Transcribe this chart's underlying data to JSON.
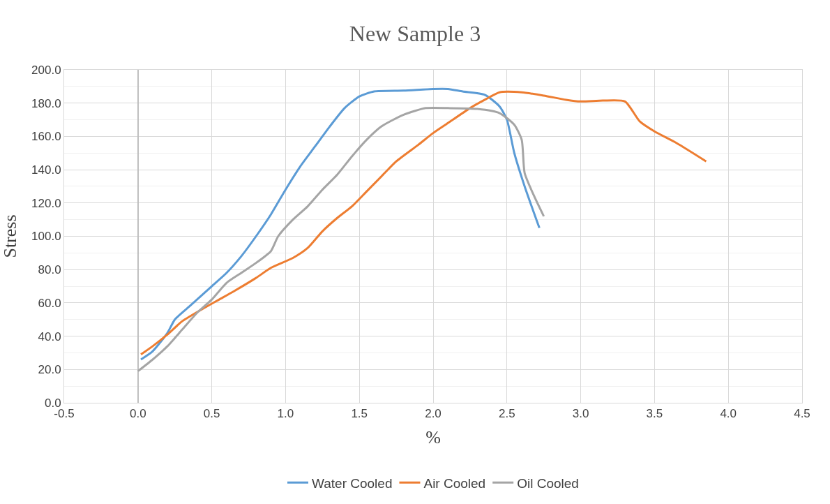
{
  "chart_data": {
    "type": "line",
    "title": "New Sample 3",
    "xlabel": "%",
    "ylabel": "Stress",
    "xlim": [
      -0.5,
      4.5
    ],
    "xticks": [
      {
        "value": -0.5,
        "label": "-0.5"
      },
      {
        "value": 0,
        "label": "0.0"
      },
      {
        "value": 0.5,
        "label": "0.5"
      },
      {
        "value": 1,
        "label": "1.0"
      },
      {
        "value": 1.5,
        "label": "1.5"
      },
      {
        "value": 2,
        "label": "2.0"
      },
      {
        "value": 2.5,
        "label": "2.5"
      },
      {
        "value": 3,
        "label": "3.0"
      },
      {
        "value": 3.5,
        "label": "3.5"
      },
      {
        "value": 4,
        "label": "4.0"
      },
      {
        "value": 4.5,
        "label": "4.5"
      }
    ],
    "ylim": [
      0,
      200
    ],
    "yticks": [
      {
        "value": 0,
        "label": "0.0"
      },
      {
        "value": 20,
        "label": "20.0"
      },
      {
        "value": 40,
        "label": "40.0"
      },
      {
        "value": 60,
        "label": "60.0"
      },
      {
        "value": 80,
        "label": "80.0"
      },
      {
        "value": 100,
        "label": "100.0"
      },
      {
        "value": 120,
        "label": "120.0"
      },
      {
        "value": 140,
        "label": "140.0"
      },
      {
        "value": 160,
        "label": "160.0"
      },
      {
        "value": 180,
        "label": "180.0"
      },
      {
        "value": 200,
        "label": "200.0"
      }
    ],
    "grid": true,
    "legend": "bottom",
    "marker": "none",
    "line_style": "solid",
    "series": [
      {
        "name": "Water Cooled",
        "color": "#5b9bd5",
        "x": [
          0.02,
          0.1,
          0.2,
          0.25,
          0.35,
          0.5,
          0.6,
          0.7,
          0.8,
          0.9,
          1.0,
          1.1,
          1.2,
          1.3,
          1.4,
          1.5,
          1.6,
          1.8,
          2.0,
          2.1,
          2.2,
          2.35,
          2.45,
          2.5,
          2.55,
          2.62,
          2.72
        ],
        "values": [
          26,
          31,
          42,
          50,
          58,
          70,
          78,
          88,
          100,
          113,
          128,
          142,
          154,
          166,
          177,
          184,
          187,
          187.5,
          188.5,
          188.5,
          187,
          185,
          178,
          170,
          150,
          130,
          105
        ]
      },
      {
        "name": "Air Cooled",
        "color": "#ed7d31",
        "x": [
          0.02,
          0.1,
          0.2,
          0.3,
          0.45,
          0.55,
          0.65,
          0.8,
          0.9,
          1.05,
          1.15,
          1.25,
          1.35,
          1.45,
          1.55,
          1.65,
          1.75,
          1.9,
          2.0,
          2.1,
          2.25,
          2.35,
          2.45,
          2.6,
          2.75,
          2.9,
          3.0,
          3.15,
          3.3,
          3.4,
          3.5,
          3.65,
          3.85
        ],
        "values": [
          29,
          34,
          41,
          49,
          57,
          62,
          67,
          75,
          81,
          87,
          93,
          103,
          111,
          118,
          127,
          136,
          145,
          155,
          162,
          168,
          177,
          182,
          186.5,
          186.5,
          184.5,
          182,
          181,
          181.5,
          181,
          169,
          163,
          156,
          145
        ]
      },
      {
        "name": "Oil Cooled",
        "color": "#a5a5a5",
        "x": [
          0,
          0.1,
          0.2,
          0.3,
          0.4,
          0.5,
          0.6,
          0.7,
          0.8,
          0.9,
          0.95,
          1.05,
          1.15,
          1.25,
          1.35,
          1.45,
          1.55,
          1.65,
          1.8,
          1.95,
          2.1,
          2.3,
          2.45,
          2.55,
          2.6,
          2.62,
          2.68,
          2.75
        ],
        "values": [
          19,
          26,
          34,
          44,
          54,
          62,
          72,
          78,
          84,
          91,
          100,
          110,
          118,
          128,
          137,
          148,
          158,
          166,
          173,
          177,
          177,
          176.5,
          174,
          167,
          158,
          138,
          125,
          112
        ]
      }
    ]
  }
}
